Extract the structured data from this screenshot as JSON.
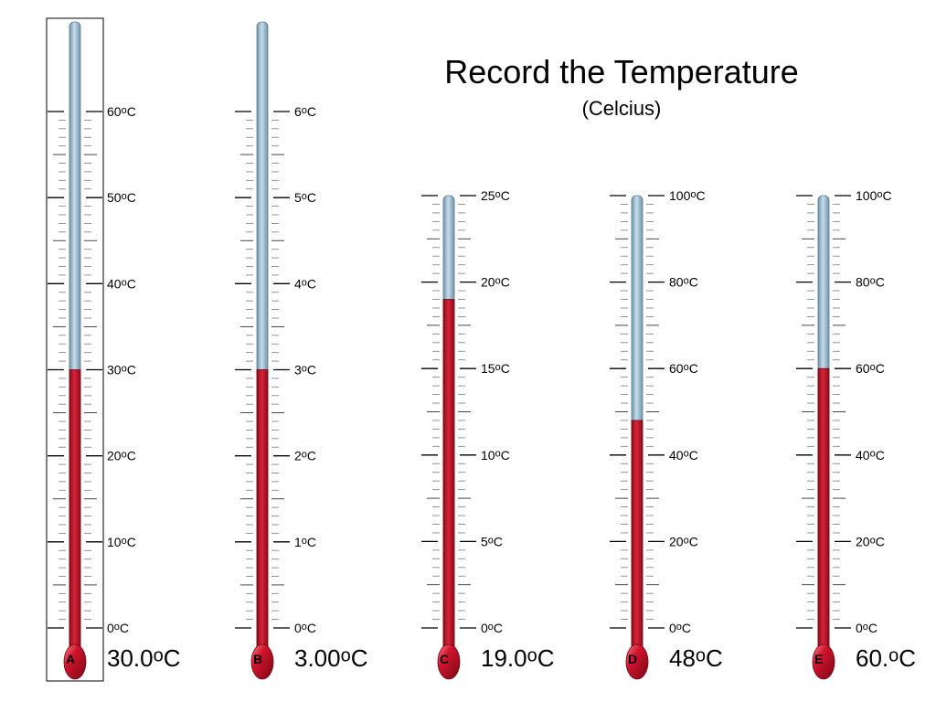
{
  "header": {
    "title": "Record the Temperature",
    "subtitle": "(Celcius)"
  },
  "colors": {
    "mercury": "#c3122a",
    "glass": "#a9c9dc",
    "tick": "#000000",
    "tick_light": "#999999"
  },
  "thermometers": [
    {
      "letter": "A",
      "scale_labels": [
        "60oC",
        "50oC",
        "40oC",
        "30oC",
        "20oC",
        "10oC",
        "0oC"
      ],
      "scale_min": 0,
      "scale_max": 60,
      "reading": 30,
      "answer": "30.0oC",
      "selected": true
    },
    {
      "letter": "B",
      "scale_labels": [
        "6oC",
        "5oC",
        "4oC",
        "3oC",
        "2oC",
        "1oC",
        "0oC"
      ],
      "scale_min": 0,
      "scale_max": 6,
      "reading": 3,
      "answer": "3.00oC",
      "selected": false
    },
    {
      "letter": "C",
      "scale_labels": [
        "25oC",
        "20oC",
        "15oC",
        "10oC",
        "5oC",
        "0oC"
      ],
      "scale_min": 0,
      "scale_max": 25,
      "reading": 19,
      "answer": "19.0oC",
      "selected": false
    },
    {
      "letter": "D",
      "scale_labels": [
        "100oC",
        "80oC",
        "60oC",
        "40oC",
        "20oC",
        "0oC"
      ],
      "scale_min": 0,
      "scale_max": 100,
      "reading": 48,
      "answer": "48oC",
      "selected": false
    },
    {
      "letter": "E",
      "scale_labels": [
        "100oC",
        "80oC",
        "60oC",
        "40oC",
        "20oC",
        "0oC"
      ],
      "scale_min": 0,
      "scale_max": 100,
      "reading": 60,
      "answer": "60.oC",
      "selected": false
    }
  ]
}
